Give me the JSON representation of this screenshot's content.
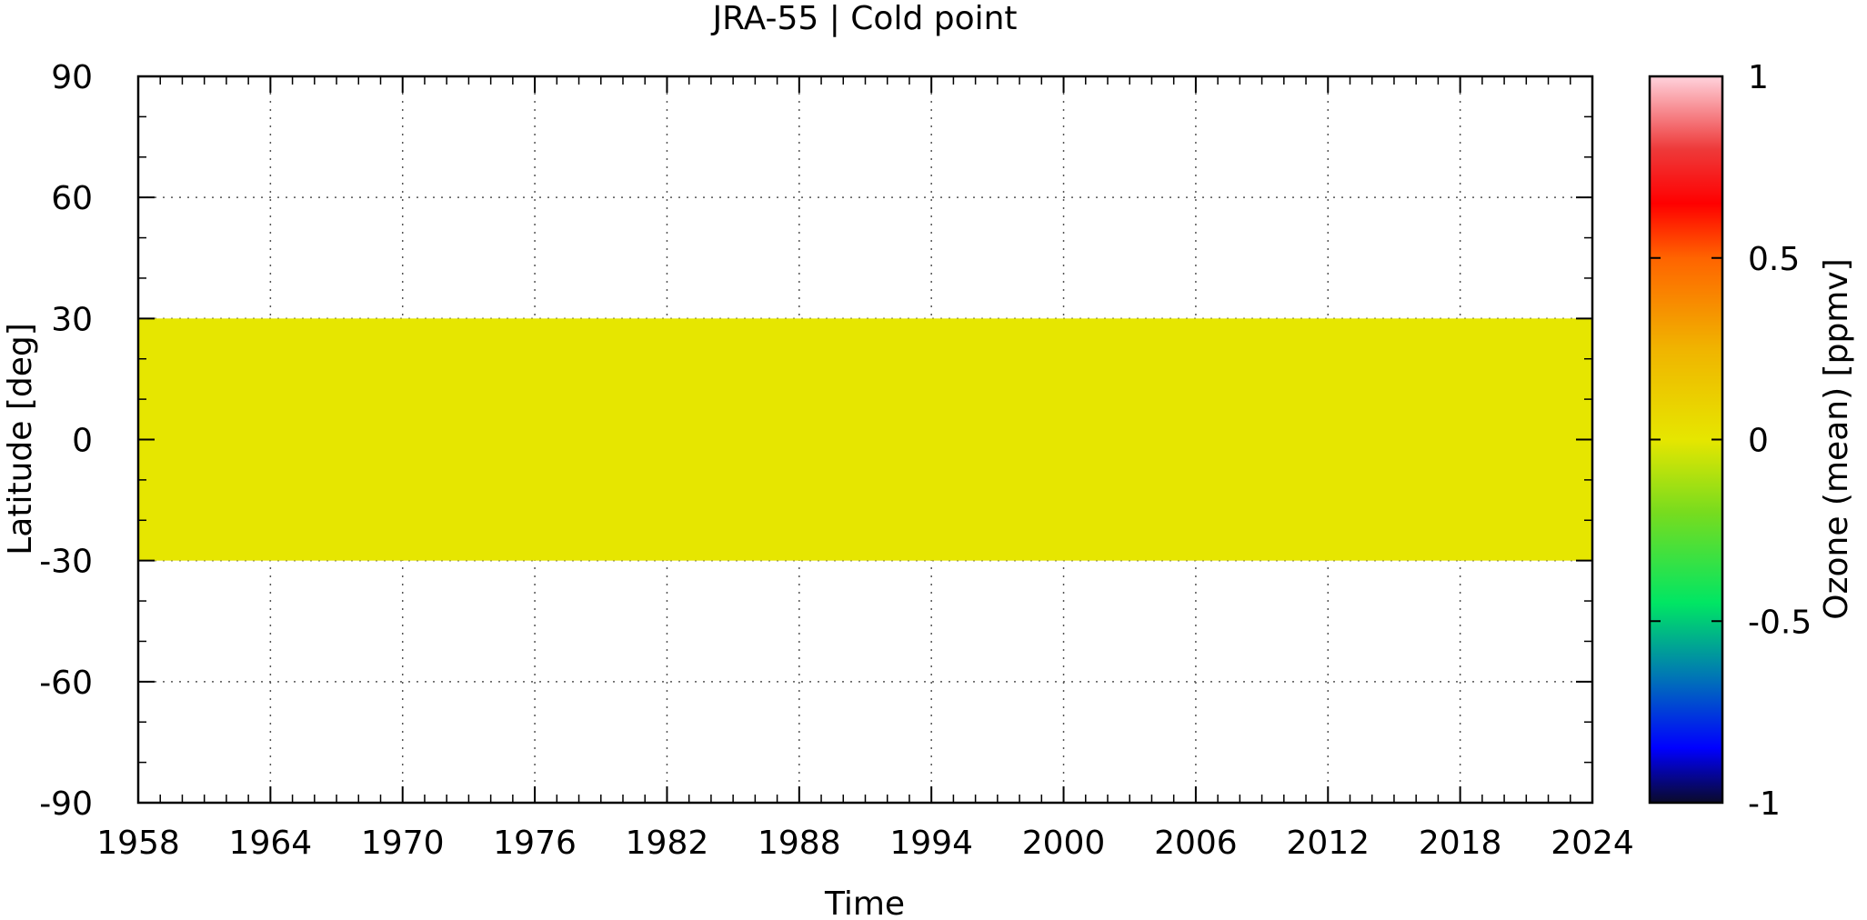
{
  "chart_data": {
    "type": "heatmap",
    "title": "JRA-55 | Cold point",
    "xlabel": "Time",
    "ylabel": "Latitude [deg]",
    "xlim": [
      1958,
      2024
    ],
    "ylim": [
      -90,
      90
    ],
    "x_ticks": [
      1958,
      1964,
      1970,
      1976,
      1982,
      1988,
      1994,
      2000,
      2006,
      2012,
      2018,
      2024
    ],
    "y_ticks": [
      -90,
      -60,
      -30,
      0,
      30,
      60,
      90
    ],
    "grid": true,
    "colorbar": {
      "label": "Ozone (mean) [ppmv]",
      "range": [
        -1,
        1
      ],
      "ticks": [
        -1,
        -0.5,
        0,
        0.5,
        1
      ],
      "colormap_stops": [
        {
          "value": -1.0,
          "color": "#0a0a2a"
        },
        {
          "value": -0.85,
          "color": "#0000ff"
        },
        {
          "value": -0.65,
          "color": "#0078b4"
        },
        {
          "value": -0.45,
          "color": "#00e664"
        },
        {
          "value": -0.2,
          "color": "#78dc1e"
        },
        {
          "value": 0.0,
          "color": "#e6e600"
        },
        {
          "value": 0.25,
          "color": "#f0b400"
        },
        {
          "value": 0.5,
          "color": "#ff6400"
        },
        {
          "value": 0.65,
          "color": "#ff0000"
        },
        {
          "value": 0.8,
          "color": "#ee3a3a"
        },
        {
          "value": 1.0,
          "color": "#ffd2dc"
        }
      ]
    },
    "data": [
      {
        "x_range": [
          1958,
          2024
        ],
        "y_range": [
          -30,
          30
        ],
        "value": 0.03,
        "color": "#e6e600"
      }
    ]
  }
}
